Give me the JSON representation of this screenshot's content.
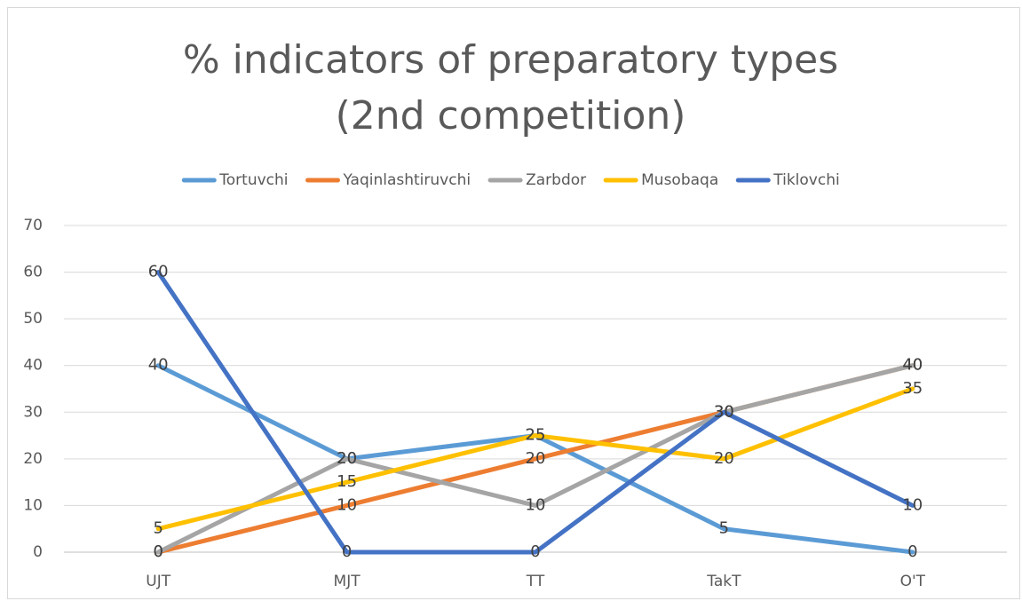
{
  "chart_data": {
    "type": "line",
    "title": "% indicators of preparatory types (2nd competition)",
    "categories": [
      "UJT",
      "MJT",
      "TT",
      "TakT",
      "O'T"
    ],
    "series": [
      {
        "name": "Tortuvchi",
        "color": "#5b9bd5",
        "values": [
          40,
          20,
          25,
          5,
          0
        ]
      },
      {
        "name": "Yaqinlashtiruvchi",
        "color": "#ed7d31",
        "values": [
          0,
          10,
          20,
          30,
          40
        ]
      },
      {
        "name": "Zarbdor",
        "color": "#a5a5a5",
        "values": [
          0,
          20,
          10,
          30,
          40
        ]
      },
      {
        "name": "Musobaqa",
        "color": "#ffc000",
        "values": [
          5,
          15,
          25,
          20,
          35
        ]
      },
      {
        "name": "Tiklovchi",
        "color": "#4472c4",
        "values": [
          60,
          0,
          0,
          30,
          10
        ]
      }
    ],
    "ylim": [
      0,
      70
    ],
    "yticks": [
      0,
      10,
      20,
      30,
      40,
      50,
      60,
      70
    ],
    "grid": true,
    "legend": "top",
    "data_labels": true
  }
}
